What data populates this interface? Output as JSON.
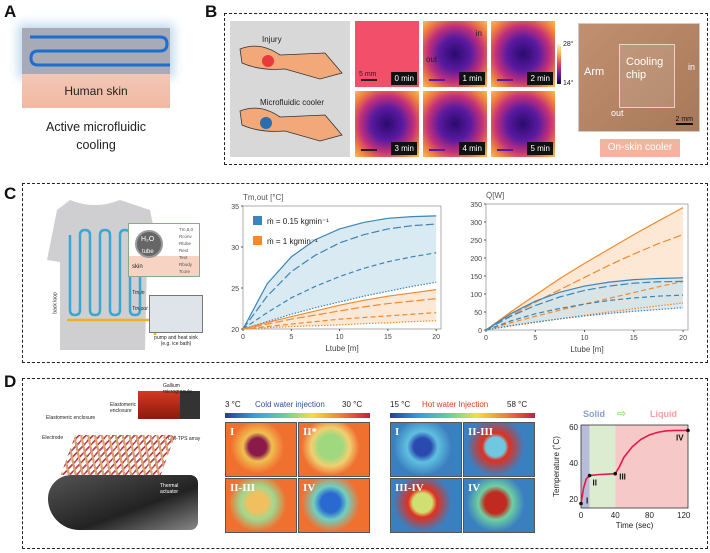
{
  "panels": {
    "A": {
      "label": "A",
      "skin_text": "Human skin",
      "caption_line1": "Active microfluidic",
      "caption_line2": "cooling"
    },
    "B": {
      "label": "B",
      "injury": "Injury",
      "cooler": "Microfluidic cooler",
      "scale_5mm": "5 mm",
      "times": [
        "0 min",
        "1 min",
        "2 min",
        "3 min",
        "4 min",
        "5 min"
      ],
      "in_label": "in",
      "out_label": "out",
      "colorbar_max": "28°",
      "colorbar_min": "14°",
      "photo_arm": "Arm",
      "photo_chip": "Cooling chip",
      "photo_in": "in",
      "photo_out": "out",
      "photo_scale": "2 mm",
      "onskin": "On-skin cooler"
    },
    "C": {
      "label": "C",
      "h2o": "H₂O",
      "tube": "tube",
      "skin": "skin",
      "t_labels": [
        "Tm,tt,0",
        "Rconv",
        "Rtube",
        "Rext",
        "Text",
        "Rbody",
        "Tcore"
      ],
      "tm_in": "Tm,in",
      "tm_out": "Tm,out",
      "back_loop": "back loop",
      "pump1": "pump and heat sink",
      "pump2": "(e.g. ice bath)"
    },
    "D": {
      "label": "D",
      "gallium": "Gallium microgranule",
      "elast1": "Elastomeric enclosure",
      "elast2": "Elastomeric enclosure",
      "electrode": "Electrode",
      "gmtps": "GM-TPS array",
      "thermal_act": "Thermal actuator",
      "cold": {
        "min": "3 °C",
        "title": "Cold water injection",
        "max": "30 °C",
        "tiles": [
          "I",
          "II*",
          "II-III",
          "IV"
        ]
      },
      "hot": {
        "min": "15 °C",
        "title": "Hot water Injection",
        "max": "58 °C",
        "tiles": [
          "I",
          "II-III",
          "III-IV",
          "IV"
        ]
      },
      "solid": "Solid",
      "liquid": "Liquid"
    }
  },
  "colors": {
    "blue": "#3a86b8",
    "orange": "#f08a30",
    "blue_fill": "#cde3ee",
    "orange_fill": "#fbe0c6",
    "red_curve": "#e8174a"
  },
  "chart_data": [
    {
      "type": "line",
      "title": "Tm,out [°C]",
      "xlabel": "Ltube [m]",
      "xlim": [
        0,
        20.5
      ],
      "ylim": [
        20,
        35
      ],
      "xticks": [
        0,
        5,
        10,
        15,
        20
      ],
      "yticks": [
        20,
        25,
        30,
        35
      ],
      "legend": [
        "ṁ = 0.15 kgmin⁻¹",
        "ṁ = 1 kgmin⁻¹"
      ],
      "legend_position": "top-left",
      "x": [
        0,
        2.5,
        5,
        7.5,
        10,
        12.5,
        15,
        17.5,
        20
      ],
      "series": [
        {
          "name": "0.15 solid",
          "color": "blue",
          "style": "solid",
          "values": [
            20,
            25.5,
            28.8,
            30.9,
            32.2,
            33.0,
            33.5,
            33.7,
            33.8
          ]
        },
        {
          "name": "0.15 dashed",
          "color": "blue",
          "style": "dash",
          "values": [
            20,
            24,
            27,
            29,
            30.5,
            31.5,
            32.2,
            32.6,
            32.8
          ]
        },
        {
          "name": "0.15 dashed 2",
          "color": "blue",
          "style": "dash2",
          "values": [
            20,
            22,
            23.8,
            25.2,
            26.4,
            27.4,
            28.2,
            28.8,
            29.3
          ]
        },
        {
          "name": "0.15 dotted",
          "color": "blue",
          "style": "dot",
          "values": [
            20,
            20.9,
            21.8,
            22.6,
            23.3,
            24,
            24.6,
            25.2,
            25.7
          ]
        },
        {
          "name": "1 solid",
          "color": "orange",
          "style": "solid",
          "values": [
            20,
            20.8,
            21.5,
            22.2,
            22.9,
            23.5,
            24,
            24.4,
            24.8
          ]
        },
        {
          "name": "1 dashed",
          "color": "orange",
          "style": "dash",
          "values": [
            20,
            20.6,
            21.2,
            21.7,
            22.2,
            22.7,
            23.1,
            23.4,
            23.7
          ]
        },
        {
          "name": "1 dashed 2",
          "color": "orange",
          "style": "dash2",
          "values": [
            20,
            20.3,
            20.6,
            20.9,
            21.2,
            21.4,
            21.6,
            21.8,
            22.0
          ]
        },
        {
          "name": "1 dotted",
          "color": "orange",
          "style": "dot",
          "values": [
            20,
            20.15,
            20.3,
            20.4,
            20.5,
            20.65,
            20.75,
            20.9,
            21.0
          ]
        }
      ]
    },
    {
      "type": "line",
      "title": "Q̇[W]",
      "xlabel": "Ltube [m]",
      "xlim": [
        0,
        20.5
      ],
      "ylim": [
        0,
        350
      ],
      "xticks": [
        0,
        5,
        10,
        15,
        20
      ],
      "yticks": [
        0,
        50,
        100,
        150,
        200,
        250,
        300,
        350
      ],
      "x": [
        0,
        2.5,
        5,
        7.5,
        10,
        12.5,
        15,
        17.5,
        20
      ],
      "series": [
        {
          "name": "1 solid",
          "color": "orange",
          "style": "solid",
          "values": [
            0,
            50,
            97,
            143,
            185,
            225,
            265,
            303,
            340
          ]
        },
        {
          "name": "1 dashed",
          "color": "orange",
          "style": "dash",
          "values": [
            0,
            40,
            77,
            112,
            146,
            180,
            211,
            240,
            265
          ]
        },
        {
          "name": "1 dashed 2",
          "color": "orange",
          "style": "dash2",
          "values": [
            0,
            20,
            38,
            55,
            72,
            88,
            104,
            120,
            135
          ]
        },
        {
          "name": "1 dotted",
          "color": "orange",
          "style": "dot",
          "values": [
            0,
            11,
            21,
            31,
            41,
            50,
            59,
            67,
            75
          ]
        },
        {
          "name": "0.15 solid",
          "color": "blue",
          "style": "solid",
          "values": [
            0,
            45,
            80,
            105,
            122,
            133,
            140,
            143,
            145
          ]
        },
        {
          "name": "0.15 dashed",
          "color": "blue",
          "style": "dash",
          "values": [
            0,
            38,
            68,
            92,
            110,
            122,
            130,
            134,
            135
          ]
        },
        {
          "name": "0.15 dashed 2",
          "color": "blue",
          "style": "dash2",
          "values": [
            0,
            25,
            45,
            60,
            72,
            82,
            89,
            94,
            97
          ]
        },
        {
          "name": "0.15 dotted",
          "color": "blue",
          "style": "dot",
          "values": [
            0,
            12,
            22,
            31,
            39,
            46,
            52,
            57,
            62
          ]
        }
      ]
    },
    {
      "type": "line",
      "title": "",
      "xlabel": "Time (sec)",
      "ylabel": "Temperature (˚C)",
      "xlim": [
        0,
        125
      ],
      "ylim": [
        15,
        61
      ],
      "xticks": [
        0,
        40,
        80,
        120
      ],
      "yticks": [
        20,
        40,
        60
      ],
      "x": [
        0,
        3,
        6,
        10,
        20,
        40,
        45,
        50,
        60,
        70,
        80,
        90,
        100,
        110,
        125
      ],
      "values": [
        17.5,
        26,
        31,
        33,
        33.5,
        34,
        38,
        43,
        49,
        53,
        55.5,
        57,
        57.8,
        58,
        58
      ],
      "regions": [
        {
          "name": "solid",
          "from": 0,
          "to": 10
        },
        {
          "name": "transition",
          "from": 10,
          "to": 40
        },
        {
          "name": "liquid",
          "from": 40,
          "to": 125
        }
      ],
      "markers": [
        {
          "label": "I",
          "x": 0,
          "y": 17.5
        },
        {
          "label": "II",
          "x": 10,
          "y": 33
        },
        {
          "label": "III",
          "x": 40,
          "y": 34
        },
        {
          "label": "IV",
          "x": 125,
          "y": 58
        }
      ]
    }
  ]
}
